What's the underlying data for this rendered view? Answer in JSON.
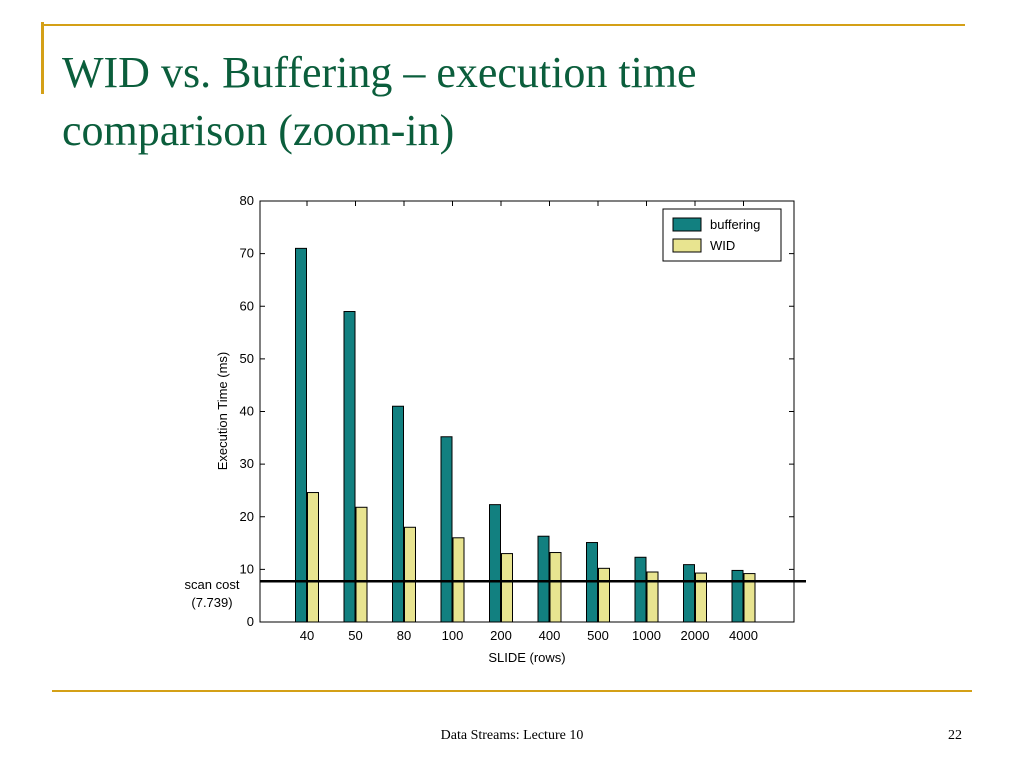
{
  "slide": {
    "title_line1": "WID vs. Buffering – execution time",
    "title_line2": "comparison (zoom-in)",
    "footer_center": "Data Streams: Lecture 10",
    "page_number": "22"
  },
  "colors": {
    "accent": "#d4a017",
    "title": "#0b5e3c",
    "buffering": "#128080",
    "wid": "#e8e490"
  },
  "chart_data": {
    "type": "bar",
    "title": "",
    "xlabel": "SLIDE (rows)",
    "ylabel": "Execution Time (ms)",
    "categories": [
      "40",
      "50",
      "80",
      "100",
      "200",
      "400",
      "500",
      "1000",
      "2000",
      "4000"
    ],
    "series": [
      {
        "name": "buffering",
        "values": [
          71,
          59,
          41,
          35.2,
          22.3,
          16.3,
          15.1,
          12.3,
          10.9,
          9.8
        ]
      },
      {
        "name": "WID",
        "values": [
          24.6,
          21.8,
          18,
          16,
          13,
          13.2,
          10.2,
          9.5,
          9.3,
          9.2
        ]
      }
    ],
    "ylim": [
      0,
      80
    ],
    "yticks": [
      0,
      10,
      20,
      30,
      40,
      50,
      60,
      70,
      80
    ],
    "grid": false,
    "legend": "top-right",
    "reference_line": {
      "value": 7.739,
      "label_line1": "scan cost",
      "label_line2": "(7.739)"
    }
  }
}
